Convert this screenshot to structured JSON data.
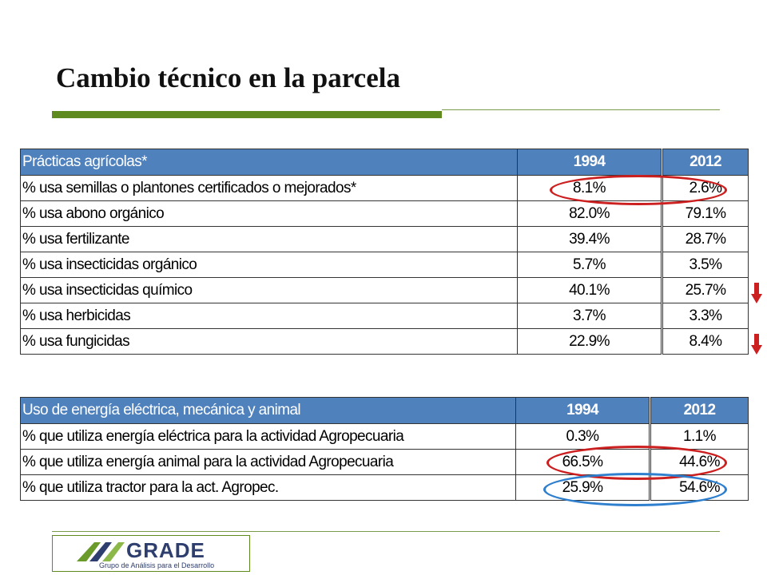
{
  "title": "Cambio técnico en la parcela",
  "table1": {
    "header": {
      "label": "Prácticas agrícolas*",
      "y1": "1994",
      "y2": "2012"
    },
    "rows": [
      {
        "label": "% usa semillas o plantones certificados o mejorados*",
        "v1994": "8.1%",
        "v2012": "2.6%"
      },
      {
        "label": "% usa abono orgánico",
        "v1994": "82.0%",
        "v2012": "79.1%"
      },
      {
        "label": "% usa fertilizante",
        "v1994": "39.4%",
        "v2012": "28.7%"
      },
      {
        "label": "% usa insecticidas orgánico",
        "v1994": "5.7%",
        "v2012": "3.5%"
      },
      {
        "label": "% usa insecticidas químico",
        "v1994": "40.1%",
        "v2012": "25.7%"
      },
      {
        "label": "% usa herbicidas",
        "v1994": "3.7%",
        "v2012": "3.3%"
      },
      {
        "label": "% usa fungicidas",
        "v1994": "22.9%",
        "v2012": "8.4%"
      }
    ]
  },
  "table2": {
    "header": {
      "label": "Uso de energía eléctrica, mecánica y animal",
      "y1": "1994",
      "y2": "2012"
    },
    "rows": [
      {
        "label": "% que utiliza energía eléctrica para la actividad Agropecuaria",
        "v1994": "0.3%",
        "v2012": "1.1%"
      },
      {
        "label": "% que utiliza energía animal para la actividad Agropecuaria",
        "v1994": "66.5%",
        "v2012": "44.6%"
      },
      {
        "label": "% que utiliza tractor para la act. Agropec.",
        "v1994": "25.9%",
        "v2012": "54.6%"
      }
    ]
  },
  "annotations": {
    "arrow_color": "#cc1f1f",
    "arrow_icon": "down-arrow-icon",
    "red_ring_color": "#cc1f1f",
    "blue_ring_color": "#2f7fcf"
  },
  "logo": {
    "name": "GRADE",
    "subtitle": "Grupo de Análisis para el Desarrollo"
  }
}
